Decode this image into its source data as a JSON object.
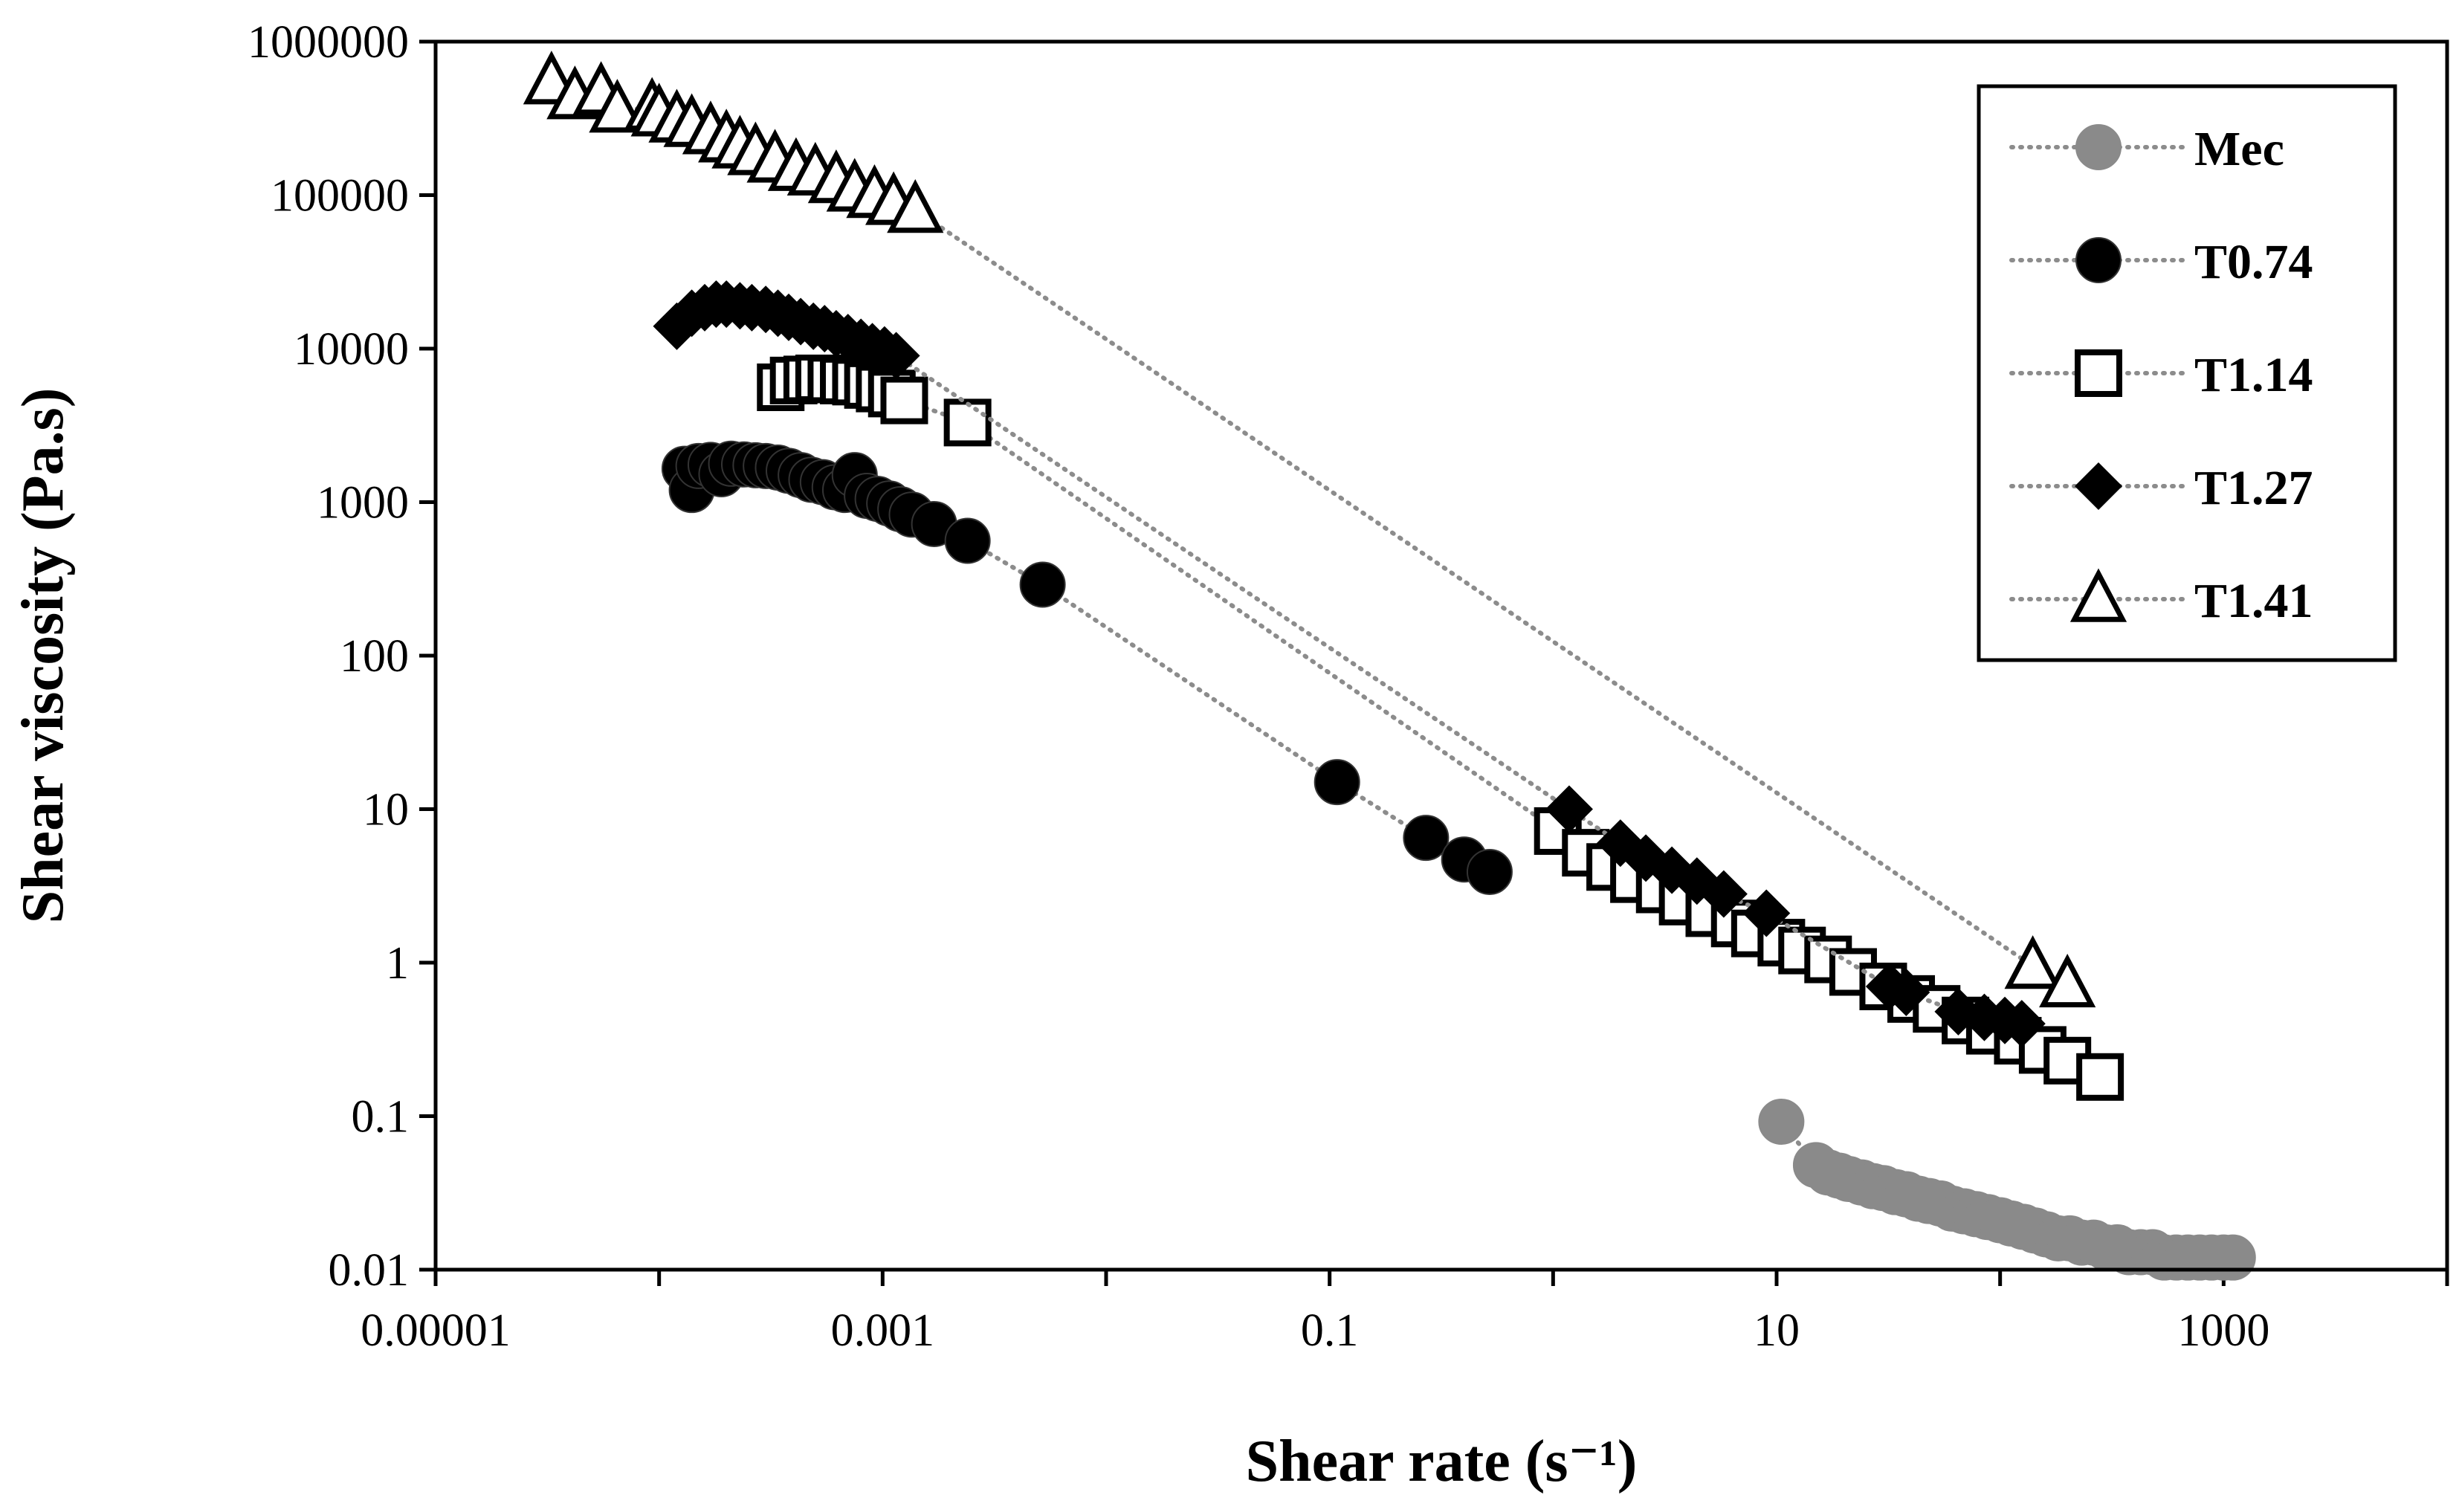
{
  "chart_data": {
    "type": "scatter",
    "title": "",
    "xlabel": "Shear rate (s⁻¹)",
    "ylabel": "Shear viscosity (Pa.s)",
    "xscale": "log",
    "yscale": "log",
    "xlim": [
      1e-05,
      10000
    ],
    "ylim": [
      0.01,
      1000000
    ],
    "x_major_ticks": [
      1e-05,
      0.001,
      0.1,
      10,
      1000
    ],
    "x_tick_labels": [
      "0.00001",
      "0.001",
      "0.1",
      "10",
      "1000"
    ],
    "y_major_ticks": [
      0.01,
      0.1,
      1,
      10,
      100,
      1000,
      10000,
      100000,
      1000000
    ],
    "y_tick_labels": [
      "0.01",
      "0.1",
      "1",
      "10",
      "100",
      "1000",
      "10000",
      "100000",
      "1000000"
    ],
    "grid": false,
    "legend_position": "top-right",
    "series": [
      {
        "name": "Mec",
        "marker": "circle-filled",
        "color": "#8a8a8a",
        "points": [
          [
            10.5,
            0.092
          ],
          [
            15,
            0.048
          ],
          [
            17,
            0.043
          ],
          [
            19,
            0.041
          ],
          [
            21,
            0.039
          ],
          [
            24,
            0.037
          ],
          [
            27,
            0.035
          ],
          [
            30,
            0.034
          ],
          [
            34,
            0.032
          ],
          [
            38,
            0.031
          ],
          [
            43,
            0.029
          ],
          [
            48,
            0.028
          ],
          [
            54,
            0.027
          ],
          [
            61,
            0.025
          ],
          [
            69,
            0.024
          ],
          [
            78,
            0.023
          ],
          [
            88,
            0.022
          ],
          [
            100,
            0.021
          ],
          [
            112,
            0.02
          ],
          [
            127,
            0.019
          ],
          [
            143,
            0.018
          ],
          [
            161,
            0.017
          ],
          [
            182,
            0.016
          ],
          [
            205,
            0.016
          ],
          [
            232,
            0.015
          ],
          [
            262,
            0.015
          ],
          [
            296,
            0.014
          ],
          [
            334,
            0.014
          ],
          [
            377,
            0.013
          ],
          [
            426,
            0.013
          ],
          [
            481,
            0.013
          ],
          [
            543,
            0.012
          ],
          [
            613,
            0.012
          ],
          [
            692,
            0.012
          ],
          [
            782,
            0.012
          ],
          [
            883,
            0.012
          ],
          [
            1000,
            0.012
          ],
          [
            1100,
            0.012
          ]
        ]
      },
      {
        "name": "T0.74",
        "marker": "circle-filled",
        "color": "#000000",
        "points": [
          [
            0.00013,
            1650
          ],
          [
            0.00014,
            1200
          ],
          [
            0.00015,
            1720
          ],
          [
            0.00017,
            1750
          ],
          [
            0.00019,
            1520
          ],
          [
            0.00021,
            1780
          ],
          [
            0.00024,
            1760
          ],
          [
            0.00027,
            1740
          ],
          [
            0.0003,
            1720
          ],
          [
            0.00034,
            1680
          ],
          [
            0.00038,
            1600
          ],
          [
            0.00043,
            1500
          ],
          [
            0.00048,
            1400
          ],
          [
            0.00054,
            1350
          ],
          [
            0.00061,
            1250
          ],
          [
            0.00068,
            1200
          ],
          [
            0.00075,
            1500
          ],
          [
            0.00085,
            1100
          ],
          [
            0.00095,
            1050
          ],
          [
            0.00107,
            980
          ],
          [
            0.0012,
            900
          ],
          [
            0.00135,
            830
          ],
          [
            0.0017,
            720
          ],
          [
            0.0024,
            560
          ],
          [
            0.0052,
            290
          ],
          [
            0.108,
            15
          ],
          [
            0.27,
            6.5
          ],
          [
            0.4,
            4.7
          ],
          [
            0.52,
            3.9
          ]
        ]
      },
      {
        "name": "T1.14",
        "marker": "square-open",
        "color": "#000000",
        "points": [
          [
            0.00035,
            5600
          ],
          [
            0.0004,
            6200
          ],
          [
            0.00046,
            6300
          ],
          [
            0.00052,
            6400
          ],
          [
            0.00059,
            6300
          ],
          [
            0.00067,
            6200
          ],
          [
            0.00076,
            6100
          ],
          [
            0.00086,
            5800
          ],
          [
            0.00097,
            5500
          ],
          [
            0.0011,
            5100
          ],
          [
            0.00125,
            4600
          ],
          [
            0.0024,
            3300
          ],
          [
            1.05,
            7.2
          ],
          [
            1.4,
            5.2
          ],
          [
            1.8,
            4.2
          ],
          [
            2.3,
            3.5
          ],
          [
            3.0,
            3.0
          ],
          [
            3.8,
            2.5
          ],
          [
            5,
            2.1
          ],
          [
            6.5,
            1.8
          ],
          [
            8,
            1.55
          ],
          [
            10.5,
            1.35
          ],
          [
            13,
            1.2
          ],
          [
            17,
            1.05
          ],
          [
            22,
            0.87
          ],
          [
            30,
            0.7
          ],
          [
            40,
            0.58
          ],
          [
            52,
            0.5
          ],
          [
            70,
            0.42
          ],
          [
            90,
            0.36
          ],
          [
            120,
            0.31
          ],
          [
            155,
            0.27
          ],
          [
            200,
            0.23
          ],
          [
            280,
            0.18
          ]
        ]
      },
      {
        "name": "T1.27",
        "marker": "diamond-filled",
        "color": "#000000",
        "points": [
          [
            0.00012,
            14000
          ],
          [
            0.00014,
            17000
          ],
          [
            0.00016,
            18500
          ],
          [
            0.00018,
            19500
          ],
          [
            0.0002,
            19500
          ],
          [
            0.00023,
            19000
          ],
          [
            0.00026,
            18500
          ],
          [
            0.0003,
            18000
          ],
          [
            0.00034,
            17000
          ],
          [
            0.00038,
            16000
          ],
          [
            0.00043,
            15000
          ],
          [
            0.00049,
            14000
          ],
          [
            0.00055,
            13500
          ],
          [
            0.00062,
            12500
          ],
          [
            0.0007,
            11800
          ],
          [
            0.0008,
            11000
          ],
          [
            0.0009,
            10300
          ],
          [
            0.00102,
            9800
          ],
          [
            0.00115,
            9000
          ],
          [
            1.18,
            10
          ],
          [
            2,
            6
          ],
          [
            2.6,
            4.8
          ],
          [
            3.4,
            4
          ],
          [
            4.4,
            3.4
          ],
          [
            5.8,
            2.8
          ],
          [
            9,
            2.1
          ],
          [
            32,
            0.7
          ],
          [
            38,
            0.64
          ],
          [
            65,
            0.48
          ],
          [
            85,
            0.44
          ],
          [
            105,
            0.42
          ],
          [
            125,
            0.4
          ]
        ]
      },
      {
        "name": "T1.41",
        "marker": "triangle-open",
        "color": "#000000",
        "points": [
          [
            3.3e-05,
            550000
          ],
          [
            4.2e-05,
            440000
          ],
          [
            5.5e-05,
            470000
          ],
          [
            6.5e-05,
            360000
          ],
          [
            9.3e-05,
            370000
          ],
          [
            0.0001,
            340000
          ],
          [
            0.00012,
            310000
          ],
          [
            0.00014,
            290000
          ],
          [
            0.00017,
            260000
          ],
          [
            0.0002,
            230000
          ],
          [
            0.00023,
            210000
          ],
          [
            0.00027,
            190000
          ],
          [
            0.00033,
            170000
          ],
          [
            0.00041,
            150000
          ],
          [
            0.0005,
            140000
          ],
          [
            0.00062,
            125000
          ],
          [
            0.00075,
            110000
          ],
          [
            0.00092,
            100000
          ],
          [
            0.00112,
            90000
          ],
          [
            0.0014,
            80000
          ],
          [
            140,
            0.95
          ],
          [
            200,
            0.72
          ]
        ]
      }
    ]
  }
}
